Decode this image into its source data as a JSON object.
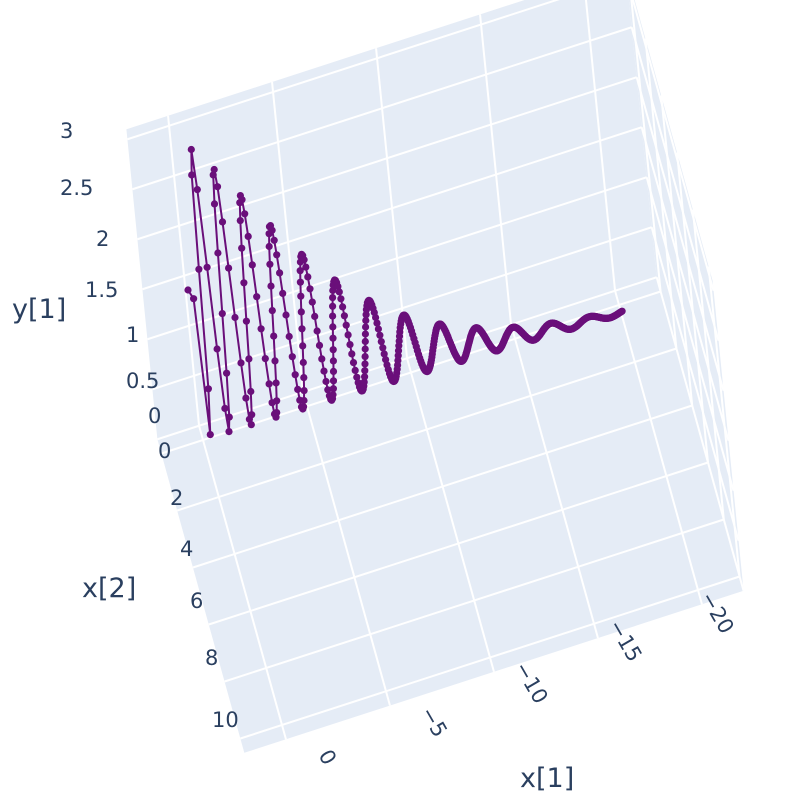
{
  "chart_data": {
    "type": "scatter3d",
    "mode": "lines+markers",
    "marker_color": "#6a0f7a",
    "background_color": "#e5ecf6",
    "grid_color": "#ffffff",
    "x1_axis": {
      "label": "x[1]",
      "ticks": [
        "0",
        "−5",
        "−10",
        "−15",
        "−20"
      ],
      "tick_values": [
        0,
        -5,
        -10,
        -15,
        -20
      ],
      "range": [
        2,
        -22
      ]
    },
    "x2_axis": {
      "label": "x[2]",
      "ticks": [
        "0",
        "2",
        "4",
        "6",
        "8",
        "10"
      ],
      "tick_values": [
        0,
        2,
        4,
        6,
        8,
        10
      ],
      "range": [
        -0.5,
        10.5
      ]
    },
    "y_axis": {
      "label": "y[1]",
      "ticks": [
        "0",
        "0.5",
        "1",
        "1.5",
        "2",
        "2.5",
        "3"
      ],
      "tick_values": [
        0,
        0.5,
        1,
        1.5,
        2,
        2.5,
        3
      ],
      "range": [
        0,
        3.1
      ]
    },
    "series": [
      {
        "x1_start": 0,
        "x1_end": -20,
        "x2_start": 0,
        "x2_end": 0.5,
        "y_envelope_peak": 3.0,
        "y_initial": 1.5,
        "y_final": 0.05,
        "oscillations": 14,
        "points": 520
      }
    ]
  }
}
